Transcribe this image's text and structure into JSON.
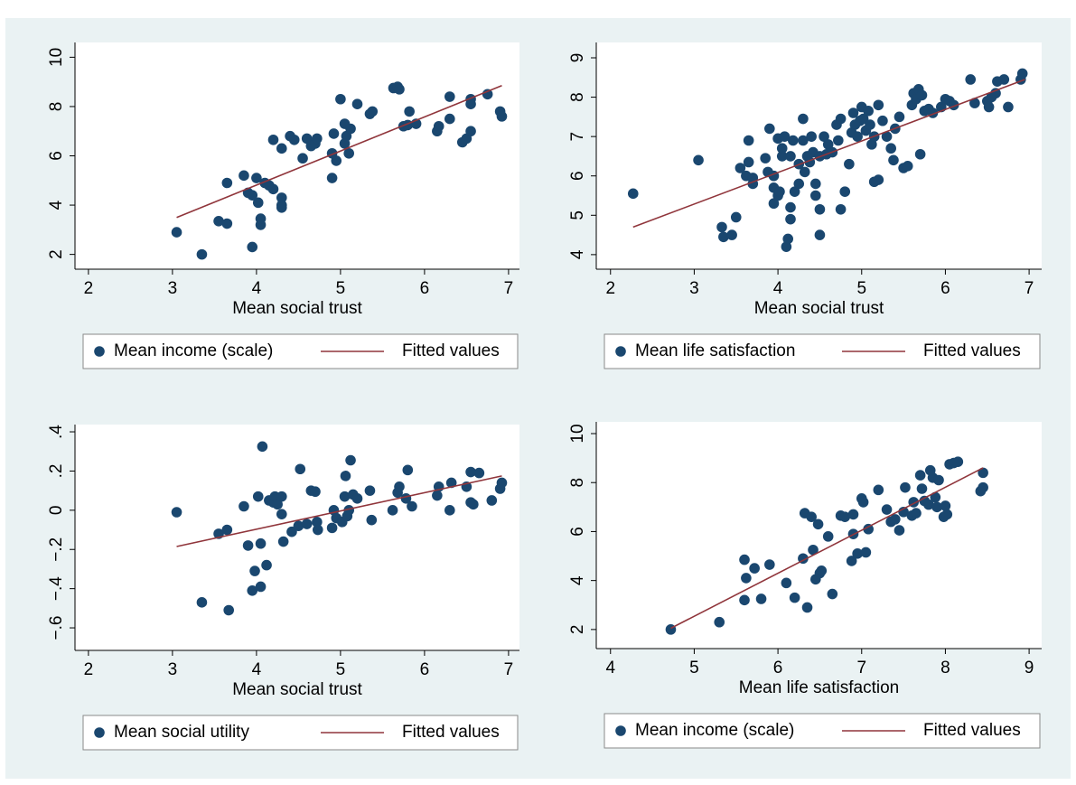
{
  "chart_data": [
    {
      "type": "scatter",
      "xlabel": "Mean social trust",
      "xlim": [
        1.84,
        7.13
      ],
      "ylim": [
        1.4,
        10.6
      ],
      "xticks": [
        2,
        3,
        4,
        5,
        6,
        7
      ],
      "yticks": [
        2,
        4,
        6,
        8,
        10
      ],
      "series": [
        {
          "name": "Mean income (scale)",
          "color": "#1a476f",
          "mode": "markers",
          "x": [
            3.05,
            3.35,
            3.55,
            3.65,
            3.65,
            3.85,
            3.9,
            3.95,
            3.95,
            4.0,
            4.02,
            4.05,
            4.05,
            4.1,
            4.15,
            4.2,
            4.2,
            4.3,
            4.3,
            4.3,
            4.3,
            4.4,
            4.45,
            4.55,
            4.6,
            4.65,
            4.7,
            4.72,
            4.9,
            4.9,
            4.92,
            4.95,
            5.0,
            5.05,
            5.05,
            5.07,
            5.1,
            5.12,
            5.2,
            5.35,
            5.38,
            5.63,
            5.68,
            5.7,
            5.75,
            5.8,
            5.82,
            5.9,
            6.15,
            6.17,
            6.3,
            6.3,
            6.45,
            6.5,
            6.55,
            6.55,
            6.55,
            6.75,
            6.9,
            6.92
          ],
          "values": [
            2.9,
            2.0,
            3.35,
            3.25,
            4.9,
            5.2,
            4.5,
            4.4,
            2.3,
            5.1,
            4.1,
            3.2,
            3.45,
            4.9,
            4.8,
            4.65,
            6.65,
            4.3,
            4.0,
            3.9,
            6.3,
            6.8,
            6.65,
            5.9,
            6.7,
            6.4,
            6.5,
            6.7,
            5.1,
            6.1,
            6.9,
            5.8,
            8.3,
            7.3,
            6.5,
            6.8,
            6.1,
            7.1,
            8.1,
            7.7,
            7.8,
            8.75,
            8.8,
            8.7,
            7.2,
            7.25,
            7.8,
            7.3,
            7.0,
            7.2,
            7.5,
            8.4,
            6.55,
            6.7,
            7.0,
            8.1,
            8.3,
            8.5,
            7.8,
            7.6
          ]
        },
        {
          "name": "Fitted values",
          "color": "#90353b",
          "mode": "line",
          "x": [
            3.05,
            6.92
          ],
          "values": [
            3.5,
            8.85
          ]
        }
      ]
    },
    {
      "type": "scatter",
      "xlabel": "Mean social trust",
      "xlim": [
        1.83,
        7.15
      ],
      "ylim": [
        3.63,
        9.39
      ],
      "xticks": [
        2,
        3,
        4,
        5,
        6,
        7
      ],
      "yticks": [
        4,
        5,
        6,
        7,
        8,
        9
      ],
      "series": [
        {
          "name": "Mean life satisfaction",
          "color": "#1a476f",
          "mode": "markers",
          "x": [
            2.27,
            3.05,
            3.33,
            3.35,
            3.45,
            3.5,
            3.55,
            3.62,
            3.65,
            3.65,
            3.7,
            3.7,
            3.85,
            3.88,
            3.9,
            3.95,
            3.95,
            3.95,
            4.0,
            4.0,
            4.02,
            4.05,
            4.05,
            4.08,
            4.1,
            4.12,
            4.15,
            4.15,
            4.15,
            4.18,
            4.2,
            4.25,
            4.25,
            4.3,
            4.3,
            4.32,
            4.35,
            4.38,
            4.4,
            4.42,
            4.45,
            4.45,
            4.5,
            4.5,
            4.5,
            4.55,
            4.58,
            4.6,
            4.65,
            4.7,
            4.72,
            4.75,
            4.75,
            4.8,
            4.85,
            4.88,
            4.9,
            4.92,
            4.95,
            4.98,
            5.0,
            5.02,
            5.05,
            5.08,
            5.1,
            5.12,
            5.15,
            5.15,
            5.2,
            5.2,
            5.25,
            5.3,
            5.35,
            5.38,
            5.4,
            5.45,
            5.5,
            5.55,
            5.6,
            5.62,
            5.65,
            5.68,
            5.7,
            5.72,
            5.75,
            5.8,
            5.85,
            5.95,
            6.0,
            6.05,
            6.1,
            6.3,
            6.35,
            6.5,
            6.52,
            6.55,
            6.6,
            6.62,
            6.7,
            6.75,
            6.9,
            6.92
          ],
          "values": [
            5.55,
            6.4,
            4.7,
            4.45,
            4.5,
            4.95,
            6.2,
            6.0,
            6.9,
            6.35,
            5.8,
            5.95,
            6.45,
            6.1,
            7.2,
            6.0,
            5.7,
            5.3,
            6.95,
            5.5,
            5.6,
            6.5,
            6.7,
            7.0,
            4.2,
            4.4,
            5.2,
            4.9,
            6.5,
            6.9,
            5.6,
            5.8,
            6.3,
            7.45,
            6.9,
            6.1,
            6.5,
            6.35,
            7.0,
            6.6,
            5.5,
            5.8,
            4.5,
            5.15,
            6.5,
            7.0,
            6.55,
            6.8,
            6.6,
            7.3,
            6.9,
            7.45,
            5.15,
            5.6,
            6.3,
            7.1,
            7.6,
            7.3,
            7.0,
            7.4,
            7.75,
            7.45,
            7.15,
            7.65,
            7.3,
            6.8,
            7.0,
            5.85,
            5.9,
            7.8,
            7.4,
            7.0,
            6.7,
            6.4,
            7.2,
            7.5,
            6.2,
            6.25,
            7.8,
            8.1,
            7.95,
            8.2,
            6.55,
            8.05,
            7.65,
            7.7,
            7.6,
            7.75,
            7.95,
            7.9,
            7.8,
            8.45,
            7.85,
            7.9,
            7.75,
            8.0,
            8.1,
            8.4,
            8.45,
            7.75,
            8.45,
            8.6
          ]
        },
        {
          "name": "Fitted values",
          "color": "#90353b",
          "mode": "line",
          "x": [
            2.27,
            6.95
          ],
          "values": [
            4.7,
            8.45
          ]
        }
      ]
    },
    {
      "type": "scatter",
      "xlabel": "Mean social trust",
      "xlim": [
        1.84,
        7.13
      ],
      "ylim": [
        -0.715,
        0.437
      ],
      "xticks": [
        2,
        3,
        4,
        5,
        6,
        7
      ],
      "yticks": [
        {
          "value": -0.6,
          "label": "−.6"
        },
        {
          "value": -0.4,
          "label": "−.4"
        },
        {
          "value": -0.2,
          "label": "−.2"
        },
        0,
        {
          "value": 0.2,
          "label": ".2"
        },
        {
          "value": 0.4,
          "label": ".4"
        }
      ],
      "series": [
        {
          "name": "Mean social utility",
          "color": "#1a476f",
          "mode": "markers",
          "x": [
            3.05,
            3.35,
            3.55,
            3.65,
            3.67,
            3.85,
            3.9,
            3.95,
            3.98,
            4.02,
            4.05,
            4.05,
            4.07,
            4.12,
            4.15,
            4.2,
            4.22,
            4.25,
            4.3,
            4.3,
            4.32,
            4.42,
            4.5,
            4.52,
            4.6,
            4.65,
            4.7,
            4.72,
            4.73,
            4.9,
            4.92,
            4.95,
            5.02,
            5.05,
            5.06,
            5.08,
            5.1,
            5.12,
            5.15,
            5.2,
            5.35,
            5.37,
            5.62,
            5.68,
            5.7,
            5.78,
            5.8,
            5.85,
            6.15,
            6.17,
            6.3,
            6.32,
            6.5,
            6.55,
            6.55,
            6.58,
            6.65,
            6.8,
            6.9,
            6.92
          ],
          "values": [
            -0.01,
            -0.47,
            -0.12,
            -0.1,
            -0.51,
            0.02,
            -0.18,
            -0.41,
            -0.31,
            0.07,
            -0.17,
            -0.39,
            0.325,
            -0.28,
            0.05,
            0.04,
            0.07,
            0.03,
            0.07,
            -0.02,
            -0.16,
            -0.11,
            -0.08,
            0.21,
            -0.07,
            0.1,
            0.095,
            -0.06,
            -0.1,
            -0.09,
            0.0,
            -0.04,
            -0.06,
            0.07,
            0.175,
            -0.03,
            0.0,
            0.255,
            0.08,
            0.06,
            0.1,
            -0.05,
            0.0,
            0.09,
            0.12,
            0.06,
            0.205,
            0.02,
            0.075,
            0.12,
            0.0,
            0.14,
            0.12,
            0.195,
            0.04,
            0.03,
            0.19,
            0.05,
            0.11,
            0.14
          ]
        },
        {
          "name": "Fitted values",
          "color": "#90353b",
          "mode": "line",
          "x": [
            3.05,
            6.92
          ],
          "values": [
            -0.185,
            0.175
          ]
        }
      ]
    },
    {
      "type": "scatter",
      "xlabel": "Mean life satisfaction",
      "xlim": [
        3.83,
        9.15
      ],
      "ylim": [
        1.22,
        10.48
      ],
      "xticks": [
        4,
        5,
        6,
        7,
        8,
        9
      ],
      "yticks": [
        2,
        4,
        6,
        8,
        10
      ],
      "series": [
        {
          "name": "Mean income (scale)",
          "color": "#1a476f",
          "mode": "markers",
          "x": [
            4.72,
            5.3,
            5.6,
            5.6,
            5.62,
            5.72,
            5.8,
            5.9,
            6.1,
            6.2,
            6.3,
            6.32,
            6.35,
            6.4,
            6.42,
            6.45,
            6.48,
            6.5,
            6.52,
            6.6,
            6.65,
            6.75,
            6.8,
            6.88,
            6.9,
            6.9,
            6.95,
            7.0,
            7.02,
            7.05,
            7.08,
            7.2,
            7.3,
            7.35,
            7.4,
            7.45,
            7.5,
            7.52,
            7.6,
            7.62,
            7.65,
            7.7,
            7.72,
            7.75,
            7.8,
            7.82,
            7.85,
            7.88,
            7.9,
            7.92,
            7.98,
            8.0,
            8.02,
            8.05,
            8.1,
            8.15,
            8.42,
            8.45,
            8.45
          ],
          "values": [
            2.0,
            2.3,
            4.85,
            3.2,
            4.1,
            4.5,
            3.25,
            4.65,
            3.9,
            3.3,
            4.9,
            6.75,
            2.9,
            6.6,
            5.25,
            4.05,
            6.3,
            4.3,
            4.4,
            5.8,
            3.45,
            6.65,
            6.6,
            4.8,
            5.9,
            6.7,
            5.1,
            7.35,
            7.2,
            5.15,
            6.1,
            7.7,
            6.9,
            6.4,
            6.5,
            6.05,
            6.8,
            7.8,
            6.65,
            7.2,
            6.75,
            8.3,
            7.75,
            7.25,
            7.1,
            8.5,
            8.2,
            7.4,
            7.0,
            8.1,
            6.6,
            7.05,
            6.7,
            8.75,
            8.8,
            8.85,
            7.65,
            7.8,
            8.4
          ]
        },
        {
          "name": "Fitted values",
          "color": "#90353b",
          "mode": "line",
          "x": [
            4.72,
            8.45
          ],
          "values": [
            2.05,
            8.6
          ]
        }
      ]
    }
  ]
}
